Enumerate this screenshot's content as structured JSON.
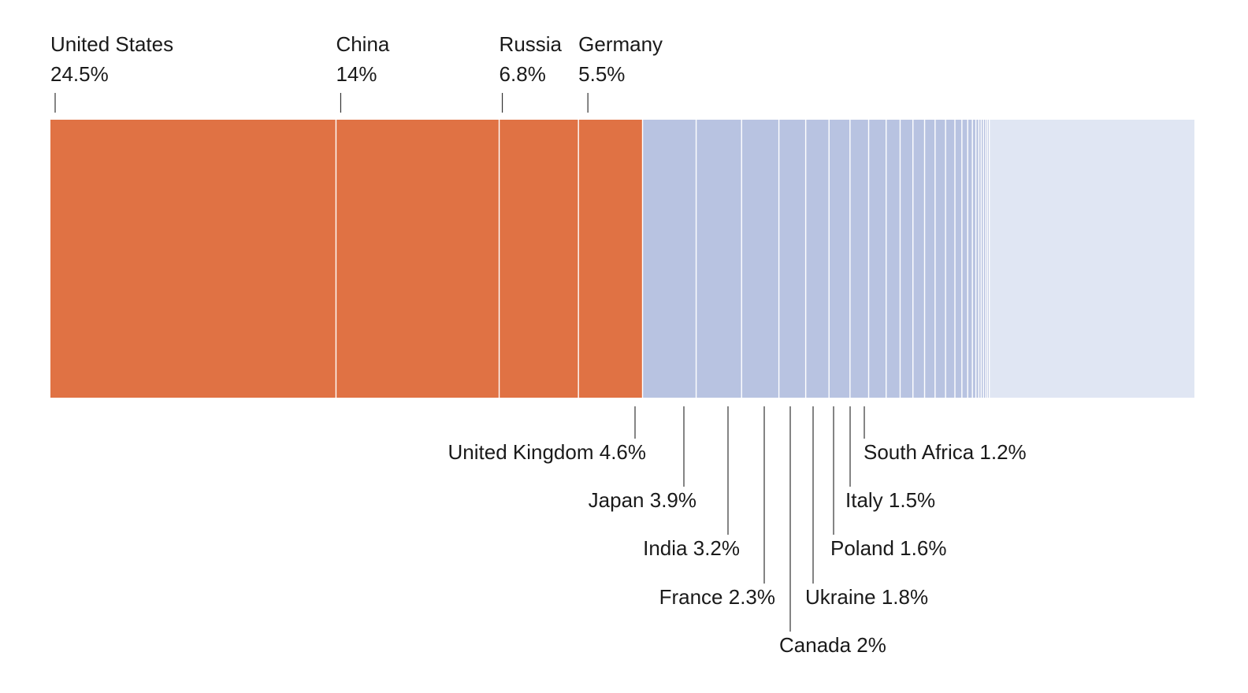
{
  "chart_data": {
    "type": "bar",
    "orientation": "stacked-horizontal",
    "colors": {
      "highlight": "#e07244",
      "other": "#b8c3e1",
      "remainder": "#e0e6f3",
      "divider": "#ffffff",
      "leader": "#333333"
    },
    "highlighted": [
      {
        "name": "United States",
        "value": 24.5,
        "label": "24.5%"
      },
      {
        "name": "China",
        "value": 14,
        "label": "14%"
      },
      {
        "name": "Russia",
        "value": 6.8,
        "label": "6.8%"
      },
      {
        "name": "Germany",
        "value": 5.5,
        "label": "5.5%"
      }
    ],
    "labeled_others": [
      {
        "name": "United Kingdom",
        "value": 4.6,
        "label": "United Kingdom 4.6%"
      },
      {
        "name": "Japan",
        "value": 3.9,
        "label": "Japan 3.9%"
      },
      {
        "name": "India",
        "value": 3.2,
        "label": "India 3.2%"
      },
      {
        "name": "France",
        "value": 2.3,
        "label": "France 2.3%"
      },
      {
        "name": "Canada",
        "value": 2.0,
        "label": "Canada 2%"
      },
      {
        "name": "Ukraine",
        "value": 1.8,
        "label": "Ukraine 1.8%"
      },
      {
        "name": "Poland",
        "value": 1.6,
        "label": "Poland 1.6%"
      },
      {
        "name": "Italy",
        "value": 1.5,
        "label": "Italy 1.5%"
      },
      {
        "name": "South Africa",
        "value": 1.2,
        "label": "South Africa 1.2%"
      }
    ],
    "unlabeled_others": [
      1.1,
      1.0,
      0.9,
      0.9,
      0.8,
      0.6,
      0.5,
      0.4,
      0.3,
      0.25,
      0.2,
      0.2,
      0.2,
      0.15,
      0.15
    ],
    "remainder": 17.6
  }
}
